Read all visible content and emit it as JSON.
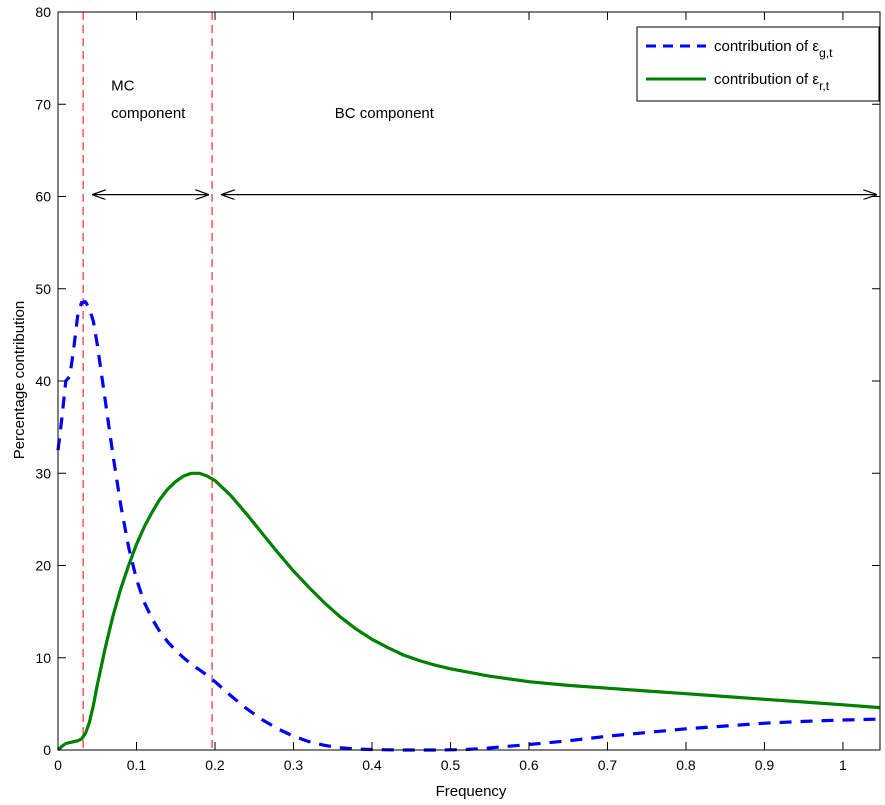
{
  "chart_data": {
    "type": "line",
    "title": "",
    "xlabel": "Frequency",
    "ylabel": "Percentage contribution",
    "xlim": [
      0,
      1.0472
    ],
    "ylim": [
      0,
      80
    ],
    "xticks": [
      0,
      0.1,
      0.2,
      0.3,
      0.4,
      0.5,
      0.6,
      0.7,
      0.8,
      0.9,
      1
    ],
    "xtick_labels": [
      "0",
      "0.1",
      "0.2",
      "0.3",
      "0.4",
      "0.5",
      "0.6",
      "0.7",
      "0.8",
      "0.9",
      "1"
    ],
    "yticks": [
      0,
      10,
      20,
      30,
      40,
      50,
      60,
      70,
      80
    ],
    "ytick_labels": [
      "0",
      "10",
      "20",
      "30",
      "40",
      "50",
      "60",
      "70",
      "80"
    ],
    "grid": false,
    "legend_position": "top-right",
    "series": [
      {
        "name_prefix": "contribution of ε",
        "name_subscript": "g,t",
        "style": "dashed",
        "color": "#0000ff",
        "x": [
          0.0,
          0.005,
          0.01,
          0.015,
          0.02,
          0.025,
          0.03,
          0.035,
          0.04,
          0.045,
          0.05,
          0.06,
          0.07,
          0.08,
          0.09,
          0.1,
          0.11,
          0.12,
          0.13,
          0.14,
          0.15,
          0.16,
          0.17,
          0.18,
          0.19,
          0.2,
          0.22,
          0.24,
          0.26,
          0.28,
          0.3,
          0.32,
          0.34,
          0.36,
          0.38,
          0.4,
          0.42,
          0.44,
          0.46,
          0.48,
          0.5,
          0.52,
          0.54,
          0.56,
          0.6,
          0.65,
          0.7,
          0.75,
          0.8,
          0.85,
          0.9,
          0.95,
          1.0,
          1.047
        ],
        "y": [
          32.5,
          36.0,
          40.0,
          40.5,
          43.5,
          47.0,
          48.5,
          48.6,
          47.8,
          46.5,
          44.0,
          38.0,
          32.0,
          26.5,
          22.0,
          18.5,
          16.0,
          14.2,
          12.8,
          11.7,
          10.8,
          10.0,
          9.3,
          8.7,
          8.1,
          7.4,
          5.9,
          4.5,
          3.3,
          2.3,
          1.5,
          0.9,
          0.5,
          0.25,
          0.1,
          0.05,
          0.02,
          0.0,
          0.0,
          0.0,
          0.02,
          0.05,
          0.15,
          0.3,
          0.6,
          1.0,
          1.5,
          1.9,
          2.3,
          2.6,
          2.9,
          3.1,
          3.25,
          3.35
        ]
      },
      {
        "name_prefix": "contribution of ε",
        "name_subscript": "r,t",
        "style": "solid",
        "color": "#008000",
        "x": [
          0.0,
          0.005,
          0.01,
          0.015,
          0.02,
          0.025,
          0.03,
          0.035,
          0.04,
          0.045,
          0.05,
          0.06,
          0.07,
          0.08,
          0.09,
          0.1,
          0.11,
          0.12,
          0.13,
          0.14,
          0.15,
          0.16,
          0.17,
          0.18,
          0.19,
          0.2,
          0.22,
          0.24,
          0.26,
          0.28,
          0.3,
          0.32,
          0.34,
          0.36,
          0.38,
          0.4,
          0.42,
          0.44,
          0.46,
          0.48,
          0.5,
          0.55,
          0.6,
          0.65,
          0.7,
          0.75,
          0.8,
          0.85,
          0.9,
          0.95,
          1.0,
          1.047
        ],
        "y": [
          0.0,
          0.4,
          0.7,
          0.8,
          0.9,
          1.0,
          1.2,
          1.8,
          3.0,
          4.8,
          7.0,
          11.0,
          14.5,
          17.5,
          20.0,
          22.3,
          24.2,
          25.8,
          27.2,
          28.3,
          29.1,
          29.7,
          30.0,
          30.0,
          29.7,
          29.2,
          27.6,
          25.6,
          23.5,
          21.4,
          19.4,
          17.6,
          15.9,
          14.4,
          13.1,
          12.0,
          11.1,
          10.3,
          9.7,
          9.2,
          8.8,
          8.0,
          7.4,
          7.0,
          6.7,
          6.4,
          6.1,
          5.8,
          5.5,
          5.2,
          4.9,
          4.6
        ]
      }
    ],
    "vlines": [
      {
        "x": 0.032,
        "color": "#ff0000",
        "style": "dashed"
      },
      {
        "x": 0.1963,
        "color": "#ff0000",
        "style": "dashed"
      }
    ],
    "annotations": [
      {
        "id": "mc-label-line1",
        "text": "MC",
        "x": 0.032,
        "y": 71.5
      },
      {
        "id": "mc-label-line2",
        "text": "component",
        "x": 0.032,
        "y": 68.5
      },
      {
        "id": "bc-label",
        "text": "BC component",
        "x": 0.35,
        "y": 68.5
      }
    ],
    "arrows": [
      {
        "id": "mc-arrow",
        "x_start": 0.032,
        "x_end": 0.1963,
        "y": 60.2
      },
      {
        "id": "bc-arrow",
        "x_start": 0.1963,
        "x_end": 1.0472,
        "y": 60.2
      }
    ]
  }
}
